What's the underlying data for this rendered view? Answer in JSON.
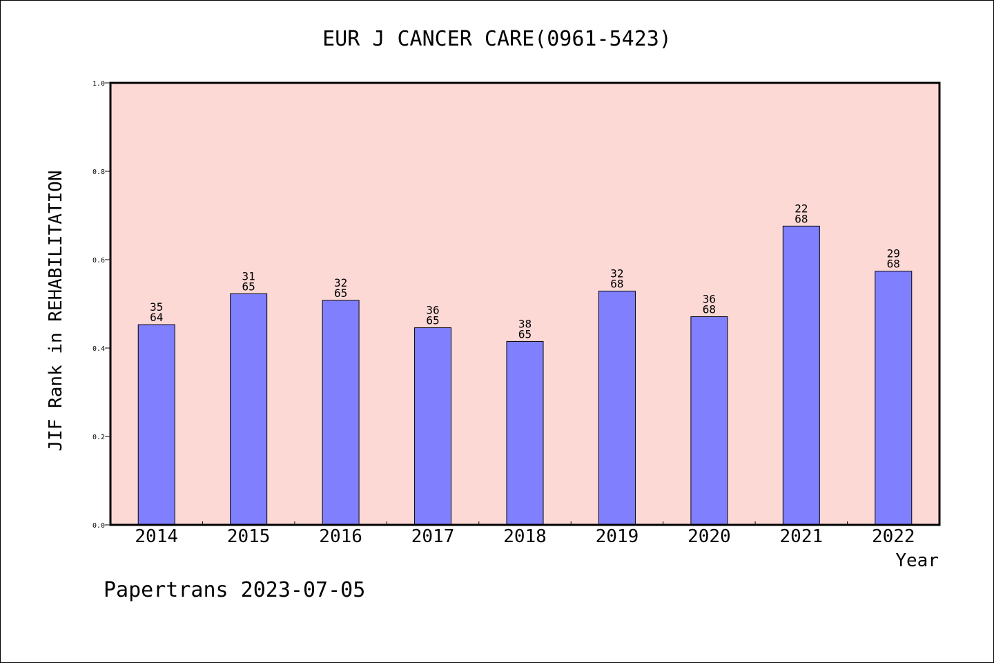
{
  "title": "EUR J CANCER CARE(0961-5423)",
  "footer": "Papertrans 2023-07-05",
  "colors": {
    "plot_background": "#fdd9d6",
    "bar_fill": "#8080ff",
    "bar_stroke": "#000000"
  },
  "chart_data": {
    "type": "bar",
    "title": "EUR J CANCER CARE(0961-5423)",
    "xlabel": "Year",
    "ylabel": "JIF Rank in REHABILITATION",
    "ylim": [
      0,
      1.0
    ],
    "yticks": [
      "0.0",
      "0.2",
      "0.4",
      "0.6",
      "0.8",
      "1.0"
    ],
    "grid": false,
    "categories": [
      "2014",
      "2015",
      "2016",
      "2017",
      "2018",
      "2019",
      "2020",
      "2021",
      "2022"
    ],
    "values": [
      0.453,
      0.523,
      0.508,
      0.446,
      0.415,
      0.529,
      0.471,
      0.676,
      0.574
    ],
    "rank": [
      "35",
      "31",
      "32",
      "36",
      "38",
      "32",
      "36",
      "22",
      "29"
    ],
    "total": [
      "64",
      "65",
      "65",
      "65",
      "65",
      "68",
      "68",
      "68",
      "68"
    ]
  }
}
